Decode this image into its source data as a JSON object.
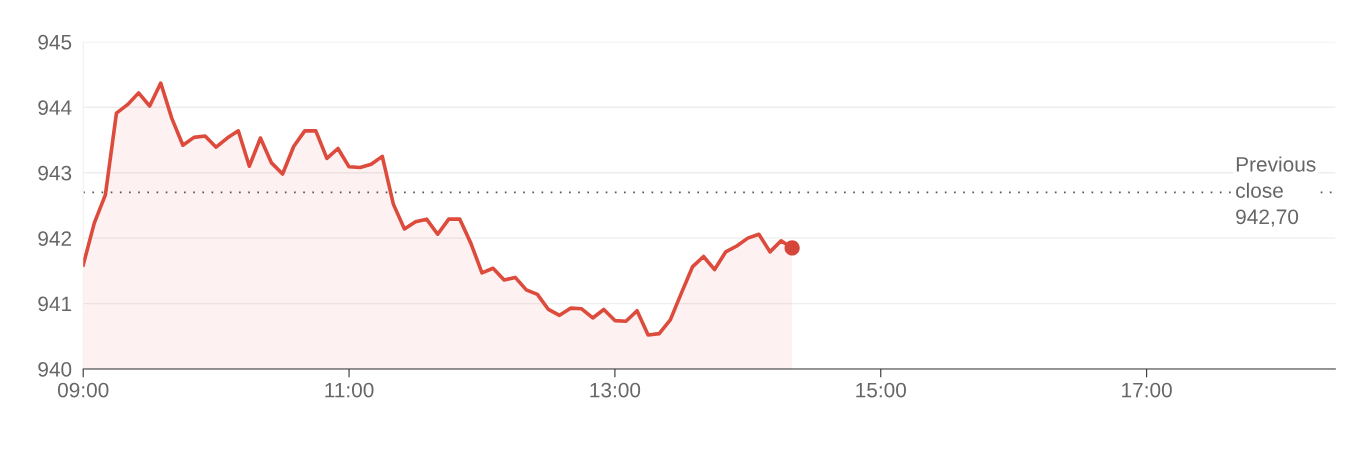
{
  "chart_data": {
    "type": "area",
    "x": [
      9.0,
      9.0833,
      9.1667,
      9.25,
      9.3333,
      9.4167,
      9.5,
      9.5833,
      9.6667,
      9.75,
      9.8333,
      9.9167,
      10.0,
      10.0833,
      10.1667,
      10.25,
      10.3333,
      10.4167,
      10.5,
      10.5833,
      10.6667,
      10.75,
      10.8333,
      10.9167,
      11.0,
      11.0833,
      11.1667,
      11.25,
      11.3333,
      11.4167,
      11.5,
      11.5833,
      11.6667,
      11.75,
      11.8333,
      11.9167,
      12.0,
      12.0833,
      12.1667,
      12.25,
      12.3333,
      12.4167,
      12.5,
      12.5833,
      12.6667,
      12.75,
      12.8333,
      12.9167,
      13.0,
      13.0833,
      13.1667,
      13.25,
      13.3333,
      13.4167,
      13.5,
      13.5833,
      13.6667,
      13.75,
      13.8333,
      13.9167,
      14.0,
      14.0833,
      14.1667,
      14.25,
      14.3333
    ],
    "series": [
      {
        "color": "#dd4b3d",
        "marker": "none",
        "values": [
          941.59,
          942.23,
          942.66,
          943.91,
          944.04,
          944.22,
          944.02,
          944.37,
          943.83,
          943.42,
          943.54,
          943.56,
          943.39,
          943.53,
          943.64,
          943.1,
          943.53,
          943.15,
          942.98,
          943.4,
          943.64,
          943.64,
          943.22,
          943.37,
          943.09,
          943.08,
          943.13,
          943.25,
          942.52,
          942.14,
          942.25,
          942.29,
          942.06,
          942.29,
          942.29,
          941.92,
          941.47,
          941.54,
          941.36,
          941.4,
          941.21,
          941.14,
          940.91,
          940.82,
          940.93,
          940.92,
          940.78,
          940.91,
          940.74,
          940.73,
          940.89,
          940.52,
          940.54,
          940.75,
          941.16,
          941.56,
          941.72,
          941.52,
          941.79,
          941.88,
          942.0,
          942.06,
          941.79,
          941.96,
          941.85
        ]
      },
      {
        "type": "scatter",
        "color": "#d6453a",
        "marker": "circle",
        "x": [
          14.3333
        ],
        "values": [
          941.85
        ]
      }
    ],
    "xlim": [
      9.0,
      18.42
    ],
    "xticks": [
      {
        "value": 9,
        "label": "09:00"
      },
      {
        "value": 11,
        "label": "11:00"
      },
      {
        "value": 13,
        "label": "13:00"
      },
      {
        "value": 15,
        "label": "15:00"
      },
      {
        "value": 17,
        "label": "17:00"
      }
    ],
    "ylim": [
      940,
      945
    ],
    "yticks": [
      940,
      941,
      942,
      943,
      944,
      945
    ],
    "grid": "y",
    "ref_lines": [
      {
        "axis": "y",
        "value": 942.7,
        "label": "Previous\nclose\n942,70",
        "color": "#555555",
        "line_style": "dotted"
      }
    ]
  }
}
